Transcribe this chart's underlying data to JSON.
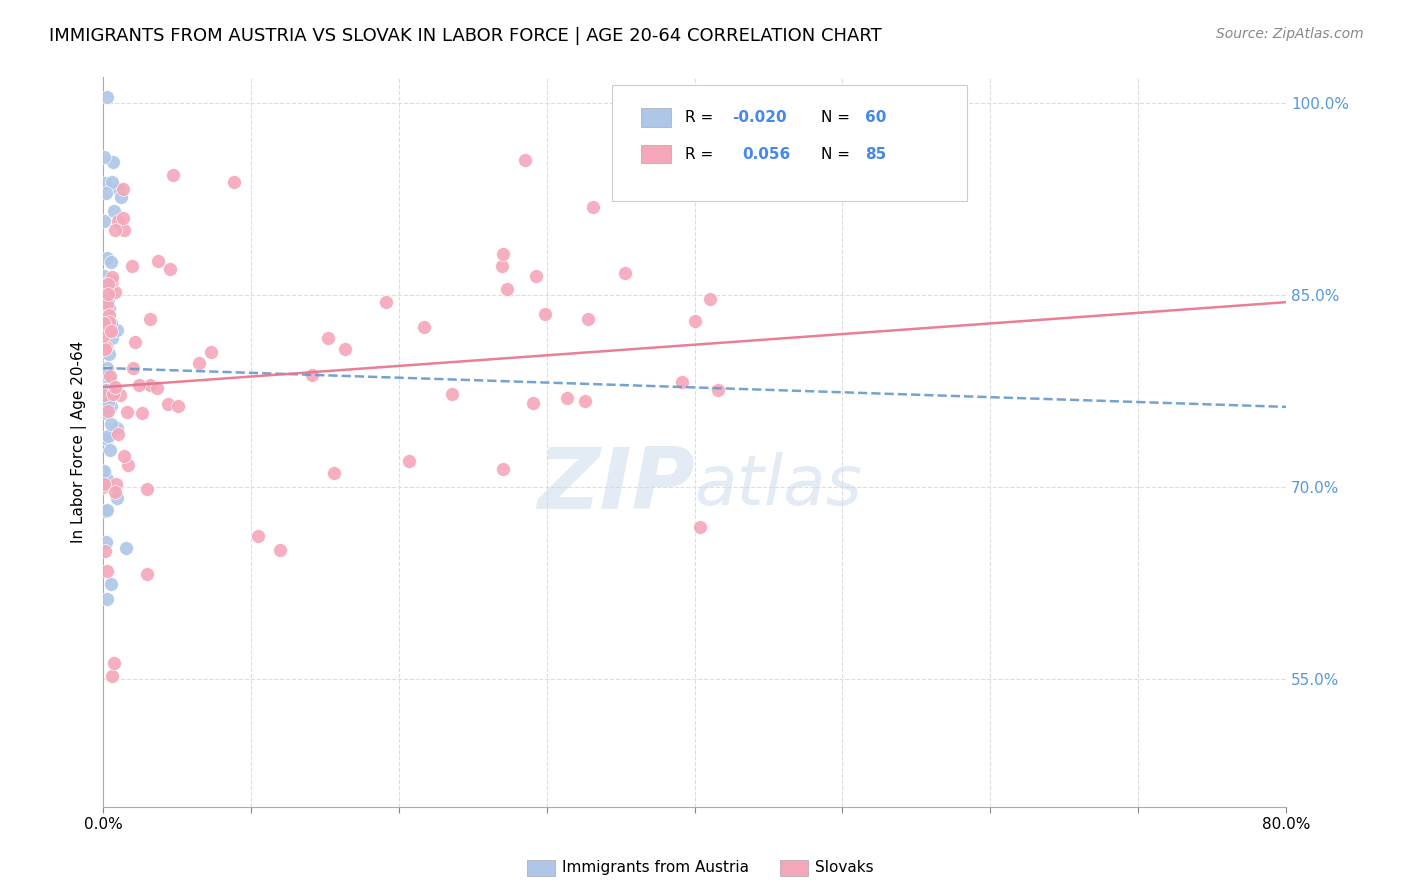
{
  "title": "IMMIGRANTS FROM AUSTRIA VS SLOVAK IN LABOR FORCE | AGE 20-64 CORRELATION CHART",
  "source": "Source: ZipAtlas.com",
  "xlabel": "",
  "ylabel": "In Labor Force | Age 20-64",
  "xlim": [
    0.0,
    0.8
  ],
  "ylim": [
    0.45,
    1.02
  ],
  "xticks": [
    0.0,
    0.1,
    0.2,
    0.3,
    0.4,
    0.5,
    0.6,
    0.7,
    0.8
  ],
  "xticklabels": [
    "0.0%",
    "",
    "",
    "",
    "",
    "",
    "",
    "",
    "80.0%"
  ],
  "ytick_positions": [
    0.55,
    0.7,
    0.85,
    1.0
  ],
  "ytick_labels": [
    "55.0%",
    "70.0%",
    "85.0%",
    "100.0%"
  ],
  "austria_color": "#aec6e8",
  "slovak_color": "#f4a7b9",
  "austria_line_color": "#6699cc",
  "slovak_line_color": "#e8708a",
  "legend_R_austria": "-0.020",
  "legend_N_austria": "60",
  "legend_R_slovak": "0.056",
  "legend_N_slovak": "85",
  "background_color": "#ffffff",
  "grid_color": "#dddddd",
  "title_fontsize": 13,
  "label_fontsize": 11,
  "tick_fontsize": 11,
  "source_fontsize": 10,
  "watermark_text": "ZIP\natlas",
  "watermark_color": "#ccdcee",
  "watermark_alpha": 0.55
}
